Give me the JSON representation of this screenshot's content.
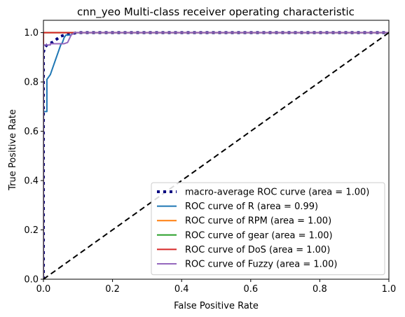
{
  "chart_data": {
    "type": "line",
    "title": "cnn_yeo Multi-class receiver operating characteristic",
    "xlabel": "False Positive Rate",
    "ylabel": "True Positive Rate",
    "xlim": [
      0.0,
      1.0
    ],
    "ylim": [
      0.0,
      1.05
    ],
    "xticks": [
      "0.0",
      "0.2",
      "0.4",
      "0.6",
      "0.8",
      "1.0"
    ],
    "yticks": [
      "0.0",
      "0.2",
      "0.4",
      "0.6",
      "0.8",
      "1.0"
    ],
    "grid": false,
    "legend_position": "lower-right",
    "series": [
      {
        "name": "macro-average ROC curve (area = 1.00)",
        "color": "#000080",
        "style": "dotted",
        "x": [
          0.0,
          0.0,
          0.002,
          0.004,
          0.01,
          0.015,
          0.025,
          0.03,
          0.04,
          0.045,
          0.05,
          0.06,
          0.08,
          0.09,
          0.1,
          0.3,
          0.6,
          1.0
        ],
        "y": [
          0.0,
          0.92,
          0.93,
          0.94,
          0.95,
          0.955,
          0.96,
          0.965,
          0.975,
          0.98,
          0.985,
          0.99,
          0.995,
          0.998,
          1.0,
          1.0,
          1.0,
          1.0
        ]
      },
      {
        "name": "ROC curve of R (area = 0.99)",
        "color": "#1f77b4",
        "style": "solid",
        "x": [
          0.0,
          0.0,
          0.01,
          0.01,
          0.02,
          0.025,
          0.03,
          0.035,
          0.04,
          0.045,
          0.05,
          0.055,
          0.06,
          0.065,
          0.07,
          0.08,
          0.085,
          0.09,
          0.1,
          0.5,
          1.0
        ],
        "y": [
          0.0,
          0.68,
          0.68,
          0.81,
          0.83,
          0.85,
          0.87,
          0.89,
          0.91,
          0.93,
          0.95,
          0.96,
          0.98,
          0.99,
          0.99,
          0.99,
          1.0,
          1.0,
          1.0,
          1.0,
          1.0
        ]
      },
      {
        "name": "ROC curve of RPM (area = 1.00)",
        "color": "#ff7f0e",
        "style": "solid",
        "x": [
          0.0,
          0.0,
          1.0
        ],
        "y": [
          0.0,
          1.0,
          1.0
        ]
      },
      {
        "name": "ROC curve of gear (area = 1.00)",
        "color": "#2ca02c",
        "style": "solid",
        "x": [
          0.0,
          0.0,
          1.0
        ],
        "y": [
          0.0,
          1.0,
          1.0
        ]
      },
      {
        "name": "ROC curve of DoS (area = 1.00)",
        "color": "#d62728",
        "style": "solid",
        "x": [
          0.0,
          0.0,
          1.0
        ],
        "y": [
          0.0,
          1.0,
          1.0
        ]
      },
      {
        "name": "ROC curve of Fuzzy (area = 1.00)",
        "color": "#9467bd",
        "style": "solid",
        "x": [
          0.0,
          0.0,
          0.02,
          0.02,
          0.06,
          0.07,
          0.075,
          0.08,
          0.085,
          0.09,
          0.1,
          0.5,
          1.0
        ],
        "y": [
          0.0,
          0.95,
          0.95,
          0.955,
          0.955,
          0.96,
          0.975,
          0.99,
          0.995,
          1.0,
          1.0,
          1.0,
          1.0
        ]
      }
    ],
    "reference_line": {
      "color": "#000000",
      "style": "dashed",
      "x": [
        0.0,
        1.0
      ],
      "y": [
        0.0,
        1.0
      ]
    }
  }
}
